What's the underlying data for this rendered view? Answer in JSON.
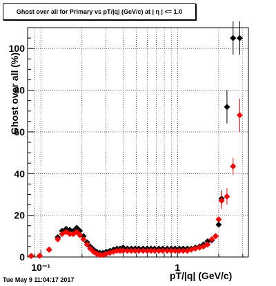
{
  "chart_data": {
    "type": "scatter",
    "title": "Ghost over all for Primary vs pT/|q| (GeV/c) at | η | <= 1.0",
    "xlabel": "pT/|q| (GeV/c)",
    "ylabel": "Ghost over all (%)",
    "x_scale": "log",
    "xlim": [
      0.08,
      3.3
    ],
    "ylim": [
      0,
      110
    ],
    "grid": true,
    "x_tick_labels": [
      "10⁻¹",
      "1"
    ],
    "y_tick_labels": [
      "0",
      "20",
      "40",
      "60",
      "80",
      "100"
    ],
    "colors": {
      "series_black": "#000000",
      "series_red": "#ff0000"
    },
    "series": [
      {
        "marker": "diamond",
        "color": "#000000",
        "points": [
          [
            0.085,
            0.5
          ],
          [
            0.098,
            0.6
          ],
          [
            0.115,
            3.5
          ],
          [
            0.133,
            9.5
          ],
          [
            0.143,
            12.5
          ],
          [
            0.153,
            13.5
          ],
          [
            0.163,
            13
          ],
          [
            0.173,
            12.5
          ],
          [
            0.183,
            14
          ],
          [
            0.193,
            12.5
          ],
          [
            0.205,
            10
          ],
          [
            0.218,
            7
          ],
          [
            0.23,
            5
          ],
          [
            0.243,
            3.5
          ],
          [
            0.256,
            2.5
          ],
          [
            0.27,
            2
          ],
          [
            0.285,
            2
          ],
          [
            0.3,
            2.5
          ],
          [
            0.32,
            3
          ],
          [
            0.34,
            3.5
          ],
          [
            0.36,
            4
          ],
          [
            0.38,
            4
          ],
          [
            0.4,
            4.5
          ],
          [
            0.43,
            4
          ],
          [
            0.46,
            4
          ],
          [
            0.49,
            4
          ],
          [
            0.52,
            4
          ],
          [
            0.56,
            4
          ],
          [
            0.6,
            4
          ],
          [
            0.64,
            4
          ],
          [
            0.68,
            4
          ],
          [
            0.73,
            4
          ],
          [
            0.78,
            4
          ],
          [
            0.84,
            4
          ],
          [
            0.9,
            4
          ],
          [
            0.96,
            4
          ],
          [
            1.03,
            4
          ],
          [
            1.1,
            4
          ],
          [
            1.18,
            4
          ],
          [
            1.26,
            4
          ],
          [
            1.35,
            4.5
          ],
          [
            1.45,
            5
          ],
          [
            1.55,
            6
          ],
          [
            1.66,
            7.5
          ],
          [
            1.78,
            8
          ],
          [
            1.9,
            10
          ],
          [
            2.0,
            15.5
          ],
          [
            2.1,
            28
          ],
          [
            2.3,
            72
          ],
          [
            2.55,
            105
          ],
          [
            2.85,
            105
          ]
        ]
      },
      {
        "marker": "diamond",
        "color": "#ff0000",
        "points": [
          [
            0.085,
            0.5
          ],
          [
            0.098,
            0.6
          ],
          [
            0.115,
            3.5
          ],
          [
            0.133,
            8.5
          ],
          [
            0.143,
            11
          ],
          [
            0.153,
            12
          ],
          [
            0.163,
            11
          ],
          [
            0.173,
            11
          ],
          [
            0.183,
            12
          ],
          [
            0.193,
            10.5
          ],
          [
            0.205,
            8.5
          ],
          [
            0.218,
            6
          ],
          [
            0.23,
            4
          ],
          [
            0.243,
            2.5
          ],
          [
            0.256,
            1.5
          ],
          [
            0.27,
            1
          ],
          [
            0.285,
            1
          ],
          [
            0.3,
            1.5
          ],
          [
            0.32,
            2
          ],
          [
            0.34,
            2.5
          ],
          [
            0.36,
            3
          ],
          [
            0.38,
            3
          ],
          [
            0.4,
            3
          ],
          [
            0.43,
            3
          ],
          [
            0.46,
            3
          ],
          [
            0.49,
            3
          ],
          [
            0.52,
            3
          ],
          [
            0.56,
            3
          ],
          [
            0.6,
            3
          ],
          [
            0.64,
            3
          ],
          [
            0.68,
            3
          ],
          [
            0.73,
            3
          ],
          [
            0.78,
            3
          ],
          [
            0.84,
            3
          ],
          [
            0.9,
            3
          ],
          [
            0.96,
            3
          ],
          [
            1.03,
            3
          ],
          [
            1.1,
            3
          ],
          [
            1.18,
            3
          ],
          [
            1.26,
            3.5
          ],
          [
            1.35,
            4
          ],
          [
            1.45,
            4.5
          ],
          [
            1.55,
            5
          ],
          [
            1.66,
            6
          ],
          [
            1.78,
            8.5
          ],
          [
            1.9,
            10
          ],
          [
            2.0,
            18
          ],
          [
            2.1,
            27
          ],
          [
            2.3,
            29
          ],
          [
            2.55,
            43.5
          ],
          [
            2.85,
            68
          ]
        ]
      }
    ]
  },
  "footer": {
    "timestamp": "Tue May  9 11:04:17 2017"
  }
}
